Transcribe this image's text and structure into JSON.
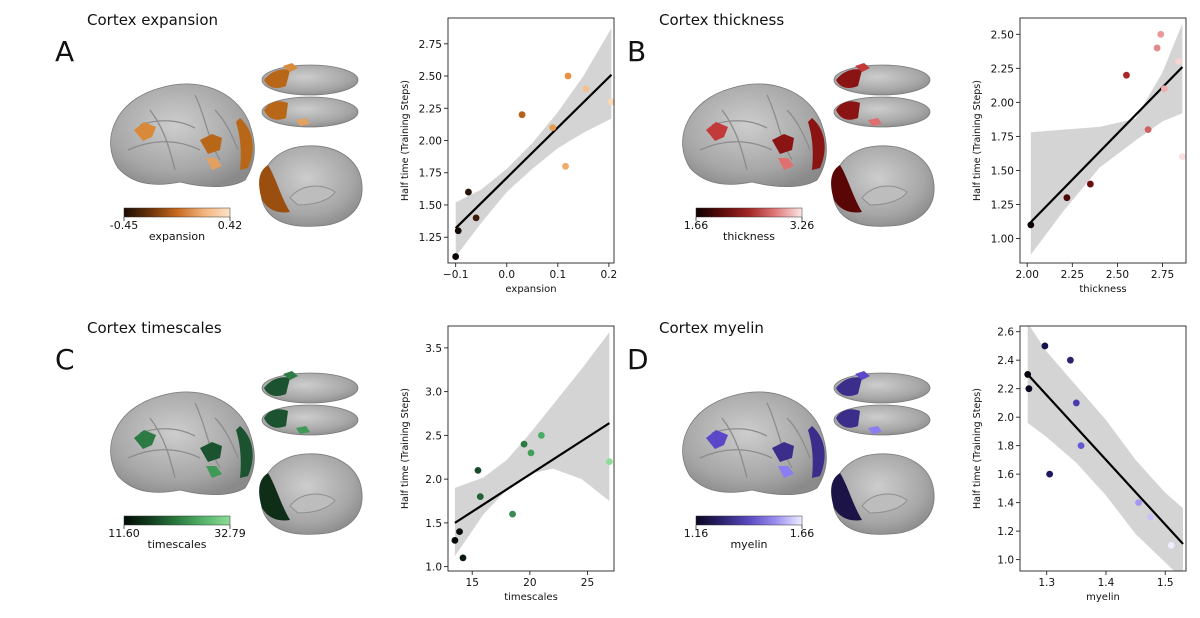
{
  "panels": [
    {
      "letter": "A",
      "title": "Cortex expansion",
      "colorbar": {
        "min_label": "-0.45",
        "max_label": "0.42",
        "label": "expansion",
        "stops": [
          "#1a0d03",
          "#6b3409",
          "#c76a1e",
          "#f2b27a",
          "#fde3c8"
        ]
      },
      "brain_colors": [
        "#d88a3a",
        "#b86718",
        "#e2a160",
        "#9a4f10"
      ],
      "chart_data": {
        "type": "scatter",
        "xlabel": "expansion",
        "ylabel": "Half time (Training Steps)",
        "xlim": [
          -0.115,
          0.21
        ],
        "ylim": [
          1.05,
          2.95
        ],
        "xticks": [
          -0.1,
          0.0,
          0.1,
          0.2
        ],
        "xtick_labels": [
          "−0.1",
          "0.0",
          "0.1",
          "0.2"
        ],
        "yticks": [
          1.25,
          1.5,
          1.75,
          2.0,
          2.25,
          2.5,
          2.75
        ],
        "ytick_labels": [
          "1.25",
          "1.50",
          "1.75",
          "2.00",
          "2.25",
          "2.50",
          "2.75"
        ],
        "points": [
          {
            "x": -0.1,
            "y": 1.1,
            "color": "#0b0603"
          },
          {
            "x": -0.095,
            "y": 1.3,
            "color": "#140a04"
          },
          {
            "x": -0.075,
            "y": 1.6,
            "color": "#2a1407"
          },
          {
            "x": -0.06,
            "y": 1.4,
            "color": "#3c1c09"
          },
          {
            "x": 0.03,
            "y": 2.2,
            "color": "#b5611b"
          },
          {
            "x": 0.09,
            "y": 2.1,
            "color": "#e69a52"
          },
          {
            "x": 0.115,
            "y": 1.8,
            "color": "#f0aa6a"
          },
          {
            "x": 0.12,
            "y": 2.5,
            "color": "#e8913f"
          },
          {
            "x": 0.155,
            "y": 2.4,
            "color": "#f5c08f"
          },
          {
            "x": 0.205,
            "y": 2.3,
            "color": "#fbd9b4"
          }
        ],
        "fit": {
          "x": [
            -0.1,
            0.205
          ],
          "y": [
            1.32,
            2.51
          ]
        },
        "band_upper": [
          [
            -0.1,
            1.52
          ],
          [
            -0.05,
            1.62
          ],
          [
            0.0,
            1.78
          ],
          [
            0.05,
            1.98
          ],
          [
            0.1,
            2.22
          ],
          [
            0.15,
            2.5
          ],
          [
            0.205,
            2.87
          ]
        ],
        "band_lower": [
          [
            -0.1,
            1.1
          ],
          [
            -0.05,
            1.36
          ],
          [
            0.0,
            1.6
          ],
          [
            0.05,
            1.78
          ],
          [
            0.1,
            1.94
          ],
          [
            0.15,
            2.06
          ],
          [
            0.205,
            2.17
          ]
        ]
      }
    },
    {
      "letter": "B",
      "title": "Cortex thickness",
      "colorbar": {
        "min_label": "1.66",
        "max_label": "3.26",
        "label": "thickness",
        "stops": [
          "#0d0000",
          "#5e0a0a",
          "#a32626",
          "#e07a7a",
          "#fce6e6"
        ]
      },
      "brain_colors": [
        "#c23a3a",
        "#8a1414",
        "#e07070",
        "#5a0606"
      ],
      "chart_data": {
        "type": "scatter",
        "xlabel": "thickness",
        "ylabel": "Half time (Training Steps)",
        "xlim": [
          1.96,
          2.88
        ],
        "ylim": [
          0.82,
          2.62
        ],
        "xticks": [
          2.0,
          2.25,
          2.5,
          2.75
        ],
        "xtick_labels": [
          "2.00",
          "2.25",
          "2.50",
          "2.75"
        ],
        "yticks": [
          1.0,
          1.25,
          1.5,
          1.75,
          2.0,
          2.25,
          2.5
        ],
        "ytick_labels": [
          "1.00",
          "1.25",
          "1.50",
          "1.75",
          "2.00",
          "2.25",
          "2.50"
        ],
        "points": [
          {
            "x": 2.02,
            "y": 1.1,
            "color": "#0a0000"
          },
          {
            "x": 2.22,
            "y": 1.3,
            "color": "#4a0808"
          },
          {
            "x": 2.35,
            "y": 1.4,
            "color": "#6a0e0e"
          },
          {
            "x": 2.55,
            "y": 2.2,
            "color": "#a82828"
          },
          {
            "x": 2.67,
            "y": 1.8,
            "color": "#d06060"
          },
          {
            "x": 2.72,
            "y": 2.4,
            "color": "#e08a8a"
          },
          {
            "x": 2.74,
            "y": 2.5,
            "color": "#e89a9a"
          },
          {
            "x": 2.76,
            "y": 2.1,
            "color": "#f0b0b0"
          },
          {
            "x": 2.84,
            "y": 2.3,
            "color": "#f8d4d4"
          },
          {
            "x": 2.86,
            "y": 1.6,
            "color": "#fae0e0"
          }
        ],
        "fit": {
          "x": [
            2.02,
            2.86
          ],
          "y": [
            1.12,
            2.26
          ]
        },
        "band_upper": [
          [
            2.02,
            1.78
          ],
          [
            2.2,
            1.8
          ],
          [
            2.4,
            1.82
          ],
          [
            2.6,
            1.88
          ],
          [
            2.75,
            2.22
          ],
          [
            2.86,
            2.58
          ]
        ],
        "band_lower": [
          [
            2.02,
            0.88
          ],
          [
            2.2,
            1.2
          ],
          [
            2.4,
            1.52
          ],
          [
            2.6,
            1.72
          ],
          [
            2.75,
            1.86
          ],
          [
            2.86,
            1.92
          ]
        ]
      }
    },
    {
      "letter": "C",
      "title": "Cortex timescales",
      "colorbar": {
        "min_label": "11.60",
        "max_label": "32.79",
        "label": "timescales",
        "stops": [
          "#020a04",
          "#123d1e",
          "#2a7a40",
          "#55b46a",
          "#8edc98"
        ]
      },
      "brain_colors": [
        "#2e7a44",
        "#1b5230",
        "#3f9a58",
        "#0e2e18"
      ],
      "chart_data": {
        "type": "scatter",
        "xlabel": "timescales",
        "ylabel": "Half time (Training Steps)",
        "xlim": [
          12.9,
          27.3
        ],
        "ylim": [
          0.95,
          3.75
        ],
        "xticks": [
          15,
          20,
          25
        ],
        "xtick_labels": [
          "15",
          "20",
          "25"
        ],
        "yticks": [
          1.0,
          1.5,
          2.0,
          2.5,
          3.0,
          3.5
        ],
        "ytick_labels": [
          "1.0",
          "1.5",
          "2.0",
          "2.5",
          "3.0",
          "3.5"
        ],
        "points": [
          {
            "x": 13.5,
            "y": 1.3,
            "color": "#030805"
          },
          {
            "x": 13.9,
            "y": 1.4,
            "color": "#06100a"
          },
          {
            "x": 14.2,
            "y": 1.1,
            "color": "#081a0e"
          },
          {
            "x": 15.5,
            "y": 2.1,
            "color": "#1a4a2a"
          },
          {
            "x": 15.7,
            "y": 1.8,
            "color": "#22603a"
          },
          {
            "x": 18.5,
            "y": 1.6,
            "color": "#3a8a52"
          },
          {
            "x": 19.5,
            "y": 2.4,
            "color": "#2a7a40"
          },
          {
            "x": 20.1,
            "y": 2.3,
            "color": "#40a05a"
          },
          {
            "x": 21.0,
            "y": 2.5,
            "color": "#4aac64"
          },
          {
            "x": 26.9,
            "y": 2.2,
            "color": "#8edc98"
          }
        ],
        "fit": {
          "x": [
            13.5,
            26.9
          ],
          "y": [
            1.5,
            2.64
          ]
        },
        "band_upper": [
          [
            13.5,
            1.9
          ],
          [
            16,
            2.02
          ],
          [
            18,
            2.22
          ],
          [
            20,
            2.52
          ],
          [
            22,
            2.85
          ],
          [
            24.5,
            3.26
          ],
          [
            26.9,
            3.68
          ]
        ],
        "band_lower": [
          [
            13.5,
            1.12
          ],
          [
            16,
            1.6
          ],
          [
            18,
            1.88
          ],
          [
            20,
            2.06
          ],
          [
            22,
            2.12
          ],
          [
            24.5,
            2.0
          ],
          [
            26.9,
            1.75
          ]
        ]
      }
    },
    {
      "letter": "D",
      "title": "Cortex myelin",
      "colorbar": {
        "min_label": "1.16",
        "max_label": "1.66",
        "label": "myelin",
        "stops": [
          "#0a0620",
          "#2c2370",
          "#5a4ac0",
          "#9a8ef0",
          "#eeeeff"
        ]
      },
      "brain_colors": [
        "#5a48c8",
        "#3a2e8a",
        "#8a7ef0",
        "#1c1446"
      ],
      "chart_data": {
        "type": "scatter",
        "xlabel": "myelin",
        "ylabel": "Half time (Training Steps)",
        "xlim": [
          1.255,
          1.535
        ],
        "ylim": [
          0.92,
          2.64
        ],
        "xticks": [
          1.3,
          1.4,
          1.5
        ],
        "xtick_labels": [
          "1.3",
          "1.4",
          "1.5"
        ],
        "yticks": [
          1.0,
          1.2,
          1.4,
          1.6,
          1.8,
          2.0,
          2.2,
          2.4,
          2.6
        ],
        "ytick_labels": [
          "1.0",
          "1.2",
          "1.4",
          "1.6",
          "1.8",
          "2.0",
          "2.2",
          "2.4",
          "2.6"
        ],
        "points": [
          {
            "x": 1.268,
            "y": 2.3,
            "color": "#05030f"
          },
          {
            "x": 1.27,
            "y": 2.2,
            "color": "#0a0720"
          },
          {
            "x": 1.297,
            "y": 2.5,
            "color": "#14104a"
          },
          {
            "x": 1.305,
            "y": 1.6,
            "color": "#1e1860"
          },
          {
            "x": 1.34,
            "y": 2.4,
            "color": "#2c2370"
          },
          {
            "x": 1.35,
            "y": 2.1,
            "color": "#4a3cb0"
          },
          {
            "x": 1.358,
            "y": 1.8,
            "color": "#6658d0"
          },
          {
            "x": 1.455,
            "y": 1.4,
            "color": "#a298f0"
          },
          {
            "x": 1.475,
            "y": 1.3,
            "color": "#c8c2f6"
          },
          {
            "x": 1.51,
            "y": 1.1,
            "color": "#eeeeff"
          }
        ],
        "fit": {
          "x": [
            1.268,
            1.53
          ],
          "y": [
            2.3,
            1.11
          ]
        },
        "band_upper": [
          [
            1.268,
            2.66
          ],
          [
            1.3,
            2.46
          ],
          [
            1.35,
            2.22
          ],
          [
            1.4,
            1.98
          ],
          [
            1.45,
            1.7
          ],
          [
            1.5,
            1.47
          ],
          [
            1.53,
            1.36
          ]
        ],
        "band_lower": [
          [
            1.268,
            1.96
          ],
          [
            1.3,
            1.86
          ],
          [
            1.35,
            1.68
          ],
          [
            1.4,
            1.45
          ],
          [
            1.45,
            1.18
          ],
          [
            1.5,
            0.98
          ],
          [
            1.53,
            0.86
          ]
        ]
      }
    }
  ]
}
